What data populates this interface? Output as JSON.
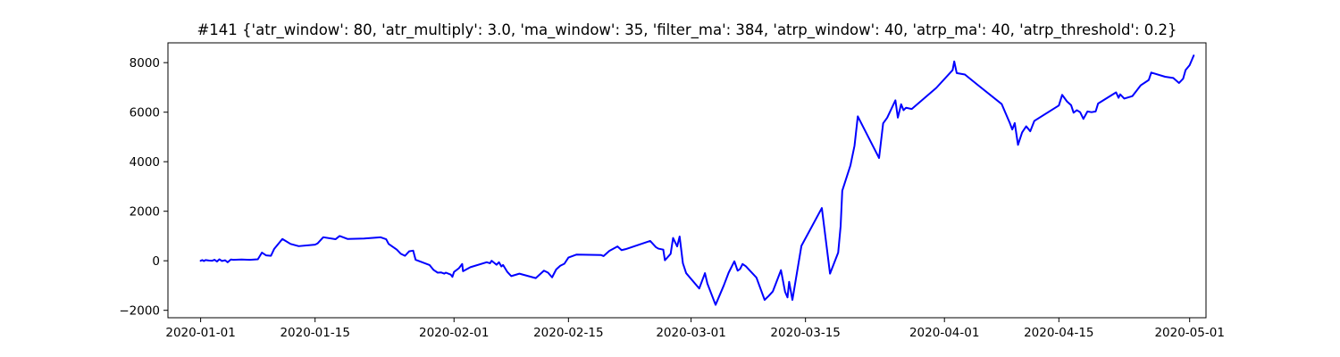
{
  "chart_data": {
    "type": "line",
    "title": "#141 {'atr_window': 80, 'atr_multiply': 3.0, 'ma_window': 35, 'filter_ma': 384, 'atrp_window': 40, 'atrp_ma': 40, 'atrp_threshold': 0.2}",
    "xlabel": "",
    "ylabel": "",
    "x_axis": {
      "kind": "date",
      "range": [
        "2019-12-28",
        "2020-05-03"
      ],
      "ticks": [
        "2020-01-01",
        "2020-01-15",
        "2020-02-01",
        "2020-02-15",
        "2020-03-01",
        "2020-03-15",
        "2020-04-01",
        "2020-04-15",
        "2020-05-01"
      ]
    },
    "y_axis": {
      "range": [
        -2300,
        8800
      ],
      "ticks": [
        -2000,
        0,
        2000,
        4000,
        6000,
        8000
      ],
      "tick_labels": [
        "−2000",
        "0",
        "2000",
        "4000",
        "6000",
        "8000"
      ]
    },
    "grid": false,
    "series": [
      {
        "color": "#0000ff",
        "points": [
          [
            "2020-01-01",
            0
          ],
          [
            "2020-01-01.2",
            30
          ],
          [
            "2020-01-01.4",
            -10
          ],
          [
            "2020-01-01.6",
            30
          ],
          [
            "2020-01-02",
            10
          ],
          [
            "2020-01-02.4",
            0
          ],
          [
            "2020-01-02.7",
            40
          ],
          [
            "2020-01-03",
            -30
          ],
          [
            "2020-01-03.3",
            60
          ],
          [
            "2020-01-03.6",
            -10
          ],
          [
            "2020-01-04",
            20
          ],
          [
            "2020-01-04.3",
            -60
          ],
          [
            "2020-01-04.7",
            50
          ],
          [
            "2020-01-05",
            40
          ],
          [
            "2020-01-06",
            50
          ],
          [
            "2020-01-07",
            40
          ],
          [
            "2020-01-08",
            60
          ],
          [
            "2020-01-08.5",
            330
          ],
          [
            "2020-01-09",
            220
          ],
          [
            "2020-01-09.6",
            200
          ],
          [
            "2020-01-10",
            480
          ],
          [
            "2020-01-11",
            880
          ],
          [
            "2020-01-12",
            680
          ],
          [
            "2020-01-13",
            590
          ],
          [
            "2020-01-15",
            650
          ],
          [
            "2020-01-15.3",
            700
          ],
          [
            "2020-01-16",
            950
          ],
          [
            "2020-01-17.5",
            870
          ],
          [
            "2020-01-18",
            1000
          ],
          [
            "2020-01-19",
            880
          ],
          [
            "2020-01-21",
            900
          ],
          [
            "2020-01-23",
            950
          ],
          [
            "2020-01-23.7",
            870
          ],
          [
            "2020-01-24",
            680
          ],
          [
            "2020-01-25",
            450
          ],
          [
            "2020-01-25.5",
            280
          ],
          [
            "2020-01-26",
            200
          ],
          [
            "2020-01-26.5",
            380
          ],
          [
            "2020-01-27",
            410
          ],
          [
            "2020-01-27.3",
            40
          ],
          [
            "2020-01-29",
            -170
          ],
          [
            "2020-01-29.5",
            -370
          ],
          [
            "2020-01-30",
            -480
          ],
          [
            "2020-01-30.4",
            -470
          ],
          [
            "2020-01-30.8",
            -520
          ],
          [
            "2020-01-31",
            -480
          ],
          [
            "2020-01-31.6",
            -560
          ],
          [
            "2020-01-31.8",
            -650
          ],
          [
            "2020-02-01",
            -450
          ],
          [
            "2020-02-01.6",
            -300
          ],
          [
            "2020-02-02",
            -130
          ],
          [
            "2020-02-02.1",
            -420
          ],
          [
            "2020-02-03",
            -260
          ],
          [
            "2020-02-05",
            -60
          ],
          [
            "2020-02-05.4",
            -100
          ],
          [
            "2020-02-05.6",
            0
          ],
          [
            "2020-02-05.9",
            -80
          ],
          [
            "2020-02-06.2",
            -160
          ],
          [
            "2020-02-06.5",
            -60
          ],
          [
            "2020-02-06.8",
            -230
          ],
          [
            "2020-02-07",
            -170
          ],
          [
            "2020-02-07.5",
            -440
          ],
          [
            "2020-02-08",
            -620
          ],
          [
            "2020-02-09",
            -520
          ],
          [
            "2020-02-11",
            -700
          ],
          [
            "2020-02-12",
            -400
          ],
          [
            "2020-02-12.5",
            -480
          ],
          [
            "2020-02-13",
            -670
          ],
          [
            "2020-02-13.5",
            -350
          ],
          [
            "2020-02-14",
            -200
          ],
          [
            "2020-02-14.5",
            -120
          ],
          [
            "2020-02-15",
            130
          ],
          [
            "2020-02-16",
            250
          ],
          [
            "2020-02-19",
            230
          ],
          [
            "2020-02-19.3",
            190
          ],
          [
            "2020-02-20",
            400
          ],
          [
            "2020-02-21",
            580
          ],
          [
            "2020-02-21.5",
            430
          ],
          [
            "2020-02-22",
            470
          ],
          [
            "2020-02-25",
            800
          ],
          [
            "2020-02-25.7",
            550
          ],
          [
            "2020-02-26",
            490
          ],
          [
            "2020-02-26.6",
            450
          ],
          [
            "2020-02-26.8",
            20
          ],
          [
            "2020-02-27.5",
            280
          ],
          [
            "2020-02-27.8",
            920
          ],
          [
            "2020-02-28.3",
            580
          ],
          [
            "2020-02-28.6",
            980
          ],
          [
            "2020-02-29",
            -100
          ],
          [
            "2020-02-29.4",
            -500
          ],
          [
            "2020-03-02",
            -1120
          ],
          [
            "2020-03-02.7",
            -500
          ],
          [
            "2020-03-03",
            -920
          ],
          [
            "2020-03-04",
            -1780
          ],
          [
            "2020-03-05",
            -1000
          ],
          [
            "2020-03-05.6",
            -480
          ],
          [
            "2020-03-06.3",
            -20
          ],
          [
            "2020-03-06.7",
            -400
          ],
          [
            "2020-03-07",
            -330
          ],
          [
            "2020-03-07.3",
            -130
          ],
          [
            "2020-03-07.7",
            -220
          ],
          [
            "2020-03-09",
            -680
          ],
          [
            "2020-03-10",
            -1580
          ],
          [
            "2020-03-10.5",
            -1420
          ],
          [
            "2020-03-11",
            -1240
          ],
          [
            "2020-03-12",
            -380
          ],
          [
            "2020-03-12.5",
            -1250
          ],
          [
            "2020-03-12.8",
            -1480
          ],
          [
            "2020-03-13",
            -850
          ],
          [
            "2020-03-13.4",
            -1580
          ],
          [
            "2020-03-14.5",
            600
          ],
          [
            "2020-03-17",
            2130
          ],
          [
            "2020-03-18",
            -520
          ],
          [
            "2020-03-19",
            330
          ],
          [
            "2020-03-19.3",
            1400
          ],
          [
            "2020-03-19.5",
            2830
          ],
          [
            "2020-03-20.5",
            3850
          ],
          [
            "2020-03-21",
            4650
          ],
          [
            "2020-03-21.4",
            5830
          ],
          [
            "2020-03-24",
            4150
          ],
          [
            "2020-03-24.5",
            5550
          ],
          [
            "2020-03-25",
            5780
          ],
          [
            "2020-03-26",
            6480
          ],
          [
            "2020-03-26.3",
            5780
          ],
          [
            "2020-03-26.7",
            6320
          ],
          [
            "2020-03-27",
            6080
          ],
          [
            "2020-03-27.3",
            6180
          ],
          [
            "2020-03-28",
            6130
          ],
          [
            "2020-03-31",
            6980
          ],
          [
            "2020-04-02",
            7700
          ],
          [
            "2020-04-02.2",
            8050
          ],
          [
            "2020-04-02.5",
            7580
          ],
          [
            "2020-04-03.5",
            7520
          ],
          [
            "2020-04-05",
            7120
          ],
          [
            "2020-04-08",
            6330
          ],
          [
            "2020-04-09",
            5560
          ],
          [
            "2020-04-09.3",
            5300
          ],
          [
            "2020-04-09.6",
            5560
          ],
          [
            "2020-04-10",
            4680
          ],
          [
            "2020-04-10.5",
            5180
          ],
          [
            "2020-04-11",
            5430
          ],
          [
            "2020-04-11.5",
            5230
          ],
          [
            "2020-04-12",
            5650
          ],
          [
            "2020-04-15",
            6270
          ],
          [
            "2020-04-15.4",
            6700
          ],
          [
            "2020-04-16",
            6430
          ],
          [
            "2020-04-16.5",
            6280
          ],
          [
            "2020-04-16.8",
            5980
          ],
          [
            "2020-04-17.2",
            6080
          ],
          [
            "2020-04-17.6",
            6000
          ],
          [
            "2020-04-18",
            5730
          ],
          [
            "2020-04-18.5",
            6030
          ],
          [
            "2020-04-19",
            6000
          ],
          [
            "2020-04-19.5",
            6030
          ],
          [
            "2020-04-19.8",
            6350
          ],
          [
            "2020-04-22",
            6800
          ],
          [
            "2020-04-22.3",
            6580
          ],
          [
            "2020-04-22.5",
            6720
          ],
          [
            "2020-04-23",
            6550
          ],
          [
            "2020-04-24",
            6650
          ],
          [
            "2020-04-25",
            7080
          ],
          [
            "2020-04-26",
            7300
          ],
          [
            "2020-04-26.3",
            7600
          ],
          [
            "2020-04-28",
            7430
          ],
          [
            "2020-04-29",
            7380
          ],
          [
            "2020-04-29.7",
            7180
          ],
          [
            "2020-04-30.2",
            7350
          ],
          [
            "2020-04-30.5",
            7700
          ],
          [
            "2020-05-01",
            7900
          ],
          [
            "2020-05-01.5",
            8290
          ]
        ]
      }
    ]
  }
}
